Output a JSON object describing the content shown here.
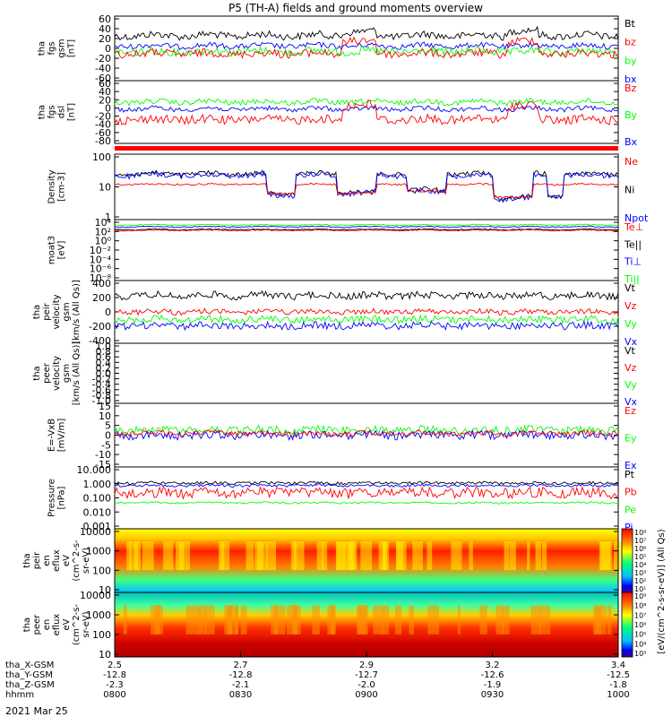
{
  "title": "P5 (TH-A) fields and ground moments overview",
  "date_label": "2021 Mar 25",
  "x_axis": {
    "rows": [
      {
        "label": "tha_X-GSM",
        "values": [
          "2.5",
          "2.7",
          "2.9",
          "3.2",
          "3.4"
        ]
      },
      {
        "label": "tha_Y-GSM",
        "values": [
          "-12.8",
          "-12.8",
          "-12.7",
          "-12.6",
          "-12.5"
        ]
      },
      {
        "label": "tha_Z-GSM",
        "values": [
          "-2.3",
          "-2.1",
          "-2.0",
          "-1.9",
          "-1.8"
        ]
      },
      {
        "label": "hhmm",
        "values": [
          "0800",
          "0830",
          "0900",
          "0930",
          "1000"
        ]
      }
    ]
  },
  "colors": {
    "black": "#000000",
    "red": "#ff0000",
    "green": "#00ff00",
    "blue": "#0000ff"
  },
  "panels": [
    {
      "ylabel": [
        "tha",
        "fgs",
        "gsm",
        "[nT]"
      ],
      "ticks": [
        "60",
        "40",
        "20",
        "0",
        "-20",
        "-40",
        "-60"
      ],
      "legend": [
        {
          "text": "Bt",
          "color": "#000000"
        },
        {
          "text": "bz",
          "color": "#ff0000"
        },
        {
          "text": "by",
          "color": "#00ff00"
        },
        {
          "text": "bx",
          "color": "#0000ff"
        }
      ]
    },
    {
      "ylabel": [
        "tha",
        "fgs",
        "dsl",
        "[nT]"
      ],
      "ticks": [
        "60",
        "40",
        "20",
        "0",
        "-20",
        "-40",
        "-60",
        "-80"
      ],
      "legend": [
        {
          "text": "Bz",
          "color": "#ff0000"
        },
        {
          "text": "By",
          "color": "#00ff00"
        },
        {
          "text": "Bx",
          "color": "#0000ff"
        }
      ]
    },
    {
      "ylabel": [
        "Density",
        "[cm-3]"
      ],
      "ticks": [
        "100",
        "10",
        "1"
      ],
      "legend": [
        {
          "text": "Ne",
          "color": "#ff0000"
        },
        {
          "text": "Ni",
          "color": "#000000"
        },
        {
          "text": "Npot",
          "color": "#0000ff"
        }
      ]
    },
    {
      "ylabel": [
        "moat3",
        "[eV]"
      ],
      "ticks": [
        "10⁴",
        "10²",
        "10⁰",
        "10⁻²",
        "10⁻⁴",
        "10⁻⁶",
        "10⁻⁸"
      ],
      "legend": [
        {
          "text": "Te⊥",
          "color": "#ff0000"
        },
        {
          "text": "Te||",
          "color": "#000000"
        },
        {
          "text": "Ti⊥",
          "color": "#0000ff"
        },
        {
          "text": "Ti||",
          "color": "#00ff00"
        }
      ]
    },
    {
      "ylabel": [
        "tha",
        "peir",
        "velocity",
        "gsm",
        "[km/s (All Qs)]"
      ],
      "ticks": [
        "400",
        "200",
        "0",
        "-200",
        "-400"
      ],
      "legend": [
        {
          "text": "Vt",
          "color": "#000000"
        },
        {
          "text": "Vz",
          "color": "#ff0000"
        },
        {
          "text": "Vy",
          "color": "#00ff00"
        },
        {
          "text": "Vx",
          "color": "#0000ff"
        }
      ]
    },
    {
      "ylabel": [
        "tha",
        "peer",
        "velocity",
        "gsm",
        "[km/s (All Qs)]"
      ],
      "ticks": [
        "1.0",
        "0.8",
        "0.6",
        "0.4",
        "0.2",
        "0.0",
        "-0.2",
        "-0.4",
        "-0.6",
        "-0.8",
        "-1.0"
      ],
      "legend": [
        {
          "text": "Vt",
          "color": "#000000"
        },
        {
          "text": "Vz",
          "color": "#ff0000"
        },
        {
          "text": "Vy",
          "color": "#00ff00"
        },
        {
          "text": "Vx",
          "color": "#0000ff"
        }
      ]
    },
    {
      "ylabel": [
        "E=-VxB",
        "[mV/m]"
      ],
      "ticks": [
        "15",
        "10",
        "5",
        "0",
        "-5",
        "-10",
        "-15"
      ],
      "legend": [
        {
          "text": "Ez",
          "color": "#ff0000"
        },
        {
          "text": "Ey",
          "color": "#00ff00"
        },
        {
          "text": "Ex",
          "color": "#0000ff"
        }
      ]
    },
    {
      "ylabel": [
        "Pressure",
        "[nPa]"
      ],
      "ticks": [
        "10.000",
        "1.000",
        "0.100",
        "0.010",
        "0.001"
      ],
      "legend": [
        {
          "text": "Pt",
          "color": "#000000"
        },
        {
          "text": "Pb",
          "color": "#ff0000"
        },
        {
          "text": "Pe",
          "color": "#00ff00"
        },
        {
          "text": "Pi",
          "color": "#0000ff"
        }
      ]
    },
    {
      "ylabel": [
        "tha",
        "peir",
        "en",
        "eflux",
        "eV",
        "(cm^2-s-",
        "sr-eV)"
      ],
      "ticks": [
        "10000",
        "1000",
        "100",
        "10"
      ],
      "legend": []
    },
    {
      "ylabel": [
        "tha",
        "peer",
        "en",
        "eflux",
        "eV",
        "(cm^2-s-",
        "sr-eV)"
      ],
      "ticks": [
        "10000",
        "1000",
        "100",
        "10"
      ],
      "legend": []
    }
  ],
  "colorbar": {
    "ticks": [
      "10⁸",
      "10⁷",
      "10⁶",
      "10⁵",
      "10⁴",
      "10³",
      "10²",
      "10¹"
    ],
    "ticks2": [
      "10⁹",
      "10⁸",
      "10⁷",
      "10⁶",
      "10⁵",
      "10⁴",
      "10³"
    ],
    "label": "[eV/(cm^2-s-sr-eV)] (All Qs)"
  },
  "chart_data": {
    "type": "line",
    "x": [
      "0800",
      "0830",
      "0900",
      "0930",
      "1000"
    ],
    "series": [
      {
        "name": "Bt"
      },
      {
        "name": "bz"
      },
      {
        "name": "by"
      },
      {
        "name": "bx"
      },
      {
        "name": "Bz"
      },
      {
        "name": "By"
      },
      {
        "name": "Bx"
      },
      {
        "name": "Ne"
      },
      {
        "name": "Ni"
      },
      {
        "name": "Npot"
      },
      {
        "name": "Vt"
      },
      {
        "name": "Vz"
      },
      {
        "name": "Vy"
      },
      {
        "name": "Vx"
      },
      {
        "name": "Ez"
      },
      {
        "name": "Ey"
      },
      {
        "name": "Ex"
      },
      {
        "name": "Pt"
      },
      {
        "name": "Pb"
      },
      {
        "name": "Pe"
      },
      {
        "name": "Pi"
      }
    ],
    "grid": false
  }
}
